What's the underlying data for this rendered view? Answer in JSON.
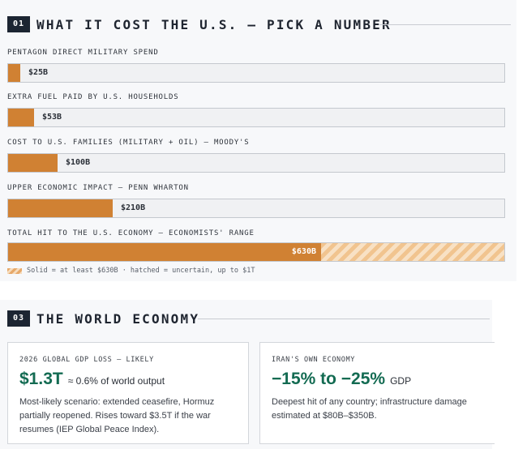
{
  "section1": {
    "number": "01",
    "title": "WHAT IT COST THE U.S. — PICK A NUMBER"
  },
  "chart_data": {
    "type": "bar",
    "orientation": "horizontal",
    "max_value": 1000,
    "unit": "$B",
    "categories": [
      "PENTAGON DIRECT MILITARY SPEND",
      "EXTRA FUEL PAID BY U.S. HOUSEHOLDS",
      "COST TO U.S. FAMILIES (MILITARY + OIL) — MOODY'S",
      "UPPER ECONOMIC IMPACT — PENN WHARTON",
      "TOTAL HIT TO THE U.S. ECONOMY — ECONOMISTS' RANGE"
    ],
    "values": [
      25,
      53,
      100,
      210,
      630
    ],
    "value_labels": [
      "$25B",
      "$53B",
      "$100B",
      "$210B",
      "$630B"
    ],
    "uncertain_upper": [
      null,
      null,
      null,
      null,
      1000
    ],
    "colors": {
      "solid": "#d08133",
      "hatched": "#f1c48f"
    },
    "legend": "Solid = at least $630B · hatched = uncertain, up to $1T"
  },
  "section3": {
    "number": "03",
    "title": "THE WORLD ECONOMY",
    "cards": [
      {
        "kicker": "2026 GLOBAL GDP LOSS — LIKELY",
        "big": "$1.3T",
        "sub": "≈ 0.6% of world output",
        "body": "Most-likely scenario: extended ceasefire, Hormuz partially reopened. Rises toward $3.5T if the war resumes (IEP Global Peace Index)."
      },
      {
        "kicker": "IRAN'S OWN ECONOMY",
        "big": "−15% to −25%",
        "sub": "GDP",
        "body": "Deepest hit of any country; infrastructure damage estimated at $80B–$350B."
      }
    ]
  }
}
